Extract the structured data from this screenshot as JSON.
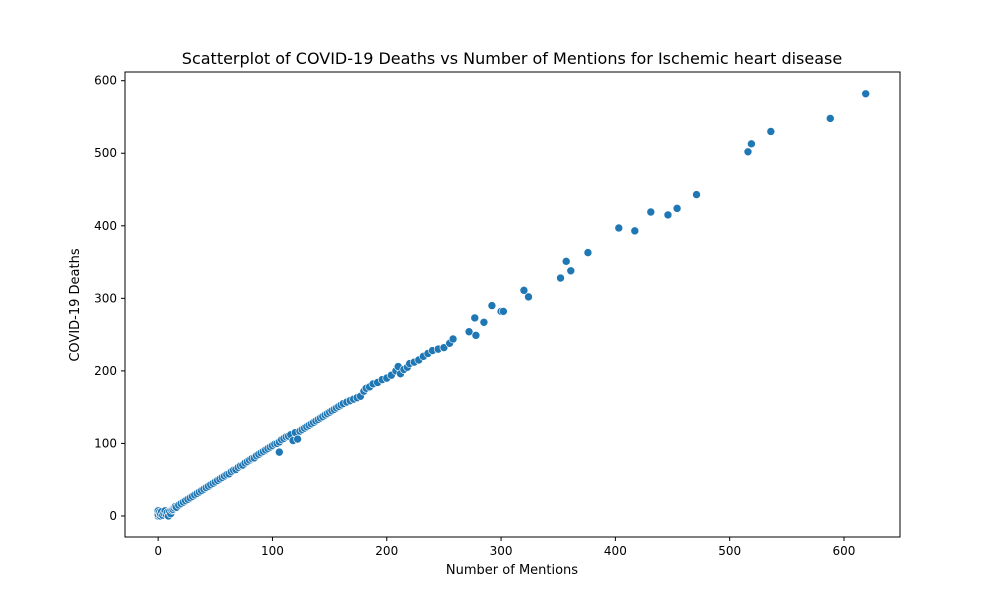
{
  "chart_data": {
    "type": "scatter",
    "title": "Scatterplot of COVID-19 Deaths vs Number of Mentions for Ischemic heart disease",
    "xlabel": "Number of Mentions",
    "ylabel": "COVID-19 Deaths",
    "xlim": [
      -29,
      649
    ],
    "ylim": [
      -29,
      612
    ],
    "xticks": [
      0,
      100,
      200,
      300,
      400,
      500,
      600
    ],
    "yticks": [
      0,
      100,
      200,
      300,
      400,
      500,
      600
    ],
    "grid": false,
    "legend": "none",
    "marker_color": "#1f77b4",
    "marker_edge_color": "#ffffff",
    "points": [
      [
        0,
        0
      ],
      [
        0,
        2
      ],
      [
        0,
        7
      ],
      [
        1,
        5
      ],
      [
        2,
        0
      ],
      [
        2,
        3
      ],
      [
        3,
        6
      ],
      [
        4,
        1
      ],
      [
        5,
        4
      ],
      [
        6,
        7
      ],
      [
        7,
        2
      ],
      [
        8,
        5
      ],
      [
        9,
        0
      ],
      [
        10,
        6
      ],
      [
        11,
        3
      ],
      [
        12,
        8
      ],
      [
        13,
        9
      ],
      [
        14,
        11
      ],
      [
        15,
        13
      ],
      [
        16,
        12
      ],
      [
        18,
        15
      ],
      [
        20,
        17
      ],
      [
        22,
        19
      ],
      [
        24,
        21
      ],
      [
        26,
        23
      ],
      [
        28,
        25
      ],
      [
        30,
        27
      ],
      [
        32,
        29
      ],
      [
        34,
        31
      ],
      [
        36,
        33
      ],
      [
        38,
        35
      ],
      [
        40,
        37
      ],
      [
        42,
        39
      ],
      [
        44,
        41
      ],
      [
        46,
        43
      ],
      [
        48,
        45
      ],
      [
        50,
        47
      ],
      [
        52,
        49
      ],
      [
        54,
        51
      ],
      [
        56,
        53
      ],
      [
        58,
        55
      ],
      [
        60,
        57
      ],
      [
        62,
        58
      ],
      [
        64,
        61
      ],
      [
        66,
        63
      ],
      [
        68,
        64
      ],
      [
        70,
        67
      ],
      [
        72,
        69
      ],
      [
        74,
        70
      ],
      [
        76,
        73
      ],
      [
        78,
        75
      ],
      [
        80,
        77
      ],
      [
        82,
        79
      ],
      [
        84,
        80
      ],
      [
        86,
        83
      ],
      [
        88,
        85
      ],
      [
        90,
        87
      ],
      [
        92,
        89
      ],
      [
        94,
        91
      ],
      [
        96,
        93
      ],
      [
        98,
        95
      ],
      [
        100,
        97
      ],
      [
        102,
        99
      ],
      [
        104,
        100
      ],
      [
        106,
        102
      ],
      [
        106,
        88
      ],
      [
        108,
        105
      ],
      [
        110,
        107
      ],
      [
        112,
        109
      ],
      [
        114,
        110
      ],
      [
        116,
        112
      ],
      [
        118,
        104
      ],
      [
        120,
        115
      ],
      [
        122,
        106
      ],
      [
        124,
        117
      ],
      [
        126,
        119
      ],
      [
        128,
        121
      ],
      [
        130,
        123
      ],
      [
        132,
        125
      ],
      [
        134,
        127
      ],
      [
        136,
        129
      ],
      [
        138,
        131
      ],
      [
        140,
        133
      ],
      [
        142,
        135
      ],
      [
        144,
        137
      ],
      [
        146,
        139
      ],
      [
        148,
        141
      ],
      [
        150,
        143
      ],
      [
        152,
        145
      ],
      [
        154,
        147
      ],
      [
        156,
        149
      ],
      [
        158,
        151
      ],
      [
        160,
        153
      ],
      [
        162,
        155
      ],
      [
        165,
        157
      ],
      [
        168,
        159
      ],
      [
        171,
        161
      ],
      [
        174,
        163
      ],
      [
        177,
        165
      ],
      [
        180,
        172
      ],
      [
        182,
        176
      ],
      [
        185,
        178
      ],
      [
        188,
        182
      ],
      [
        192,
        184
      ],
      [
        196,
        188
      ],
      [
        200,
        190
      ],
      [
        204,
        194
      ],
      [
        208,
        200
      ],
      [
        210,
        206
      ],
      [
        212,
        196
      ],
      [
        215,
        202
      ],
      [
        218,
        205
      ],
      [
        220,
        210
      ],
      [
        224,
        212
      ],
      [
        228,
        215
      ],
      [
        232,
        220
      ],
      [
        236,
        224
      ],
      [
        240,
        228
      ],
      [
        245,
        230
      ],
      [
        250,
        232
      ],
      [
        255,
        238
      ],
      [
        258,
        244
      ],
      [
        272,
        254
      ],
      [
        277,
        273
      ],
      [
        278,
        249
      ],
      [
        285,
        267
      ],
      [
        292,
        290
      ],
      [
        300,
        282
      ],
      [
        302,
        282
      ],
      [
        320,
        311
      ],
      [
        324,
        302
      ],
      [
        352,
        328
      ],
      [
        357,
        351
      ],
      [
        361,
        338
      ],
      [
        376,
        363
      ],
      [
        403,
        397
      ],
      [
        417,
        393
      ],
      [
        431,
        419
      ],
      [
        446,
        415
      ],
      [
        454,
        424
      ],
      [
        471,
        443
      ],
      [
        516,
        502
      ],
      [
        519,
        513
      ],
      [
        536,
        530
      ],
      [
        588,
        548
      ],
      [
        619,
        582
      ]
    ]
  }
}
